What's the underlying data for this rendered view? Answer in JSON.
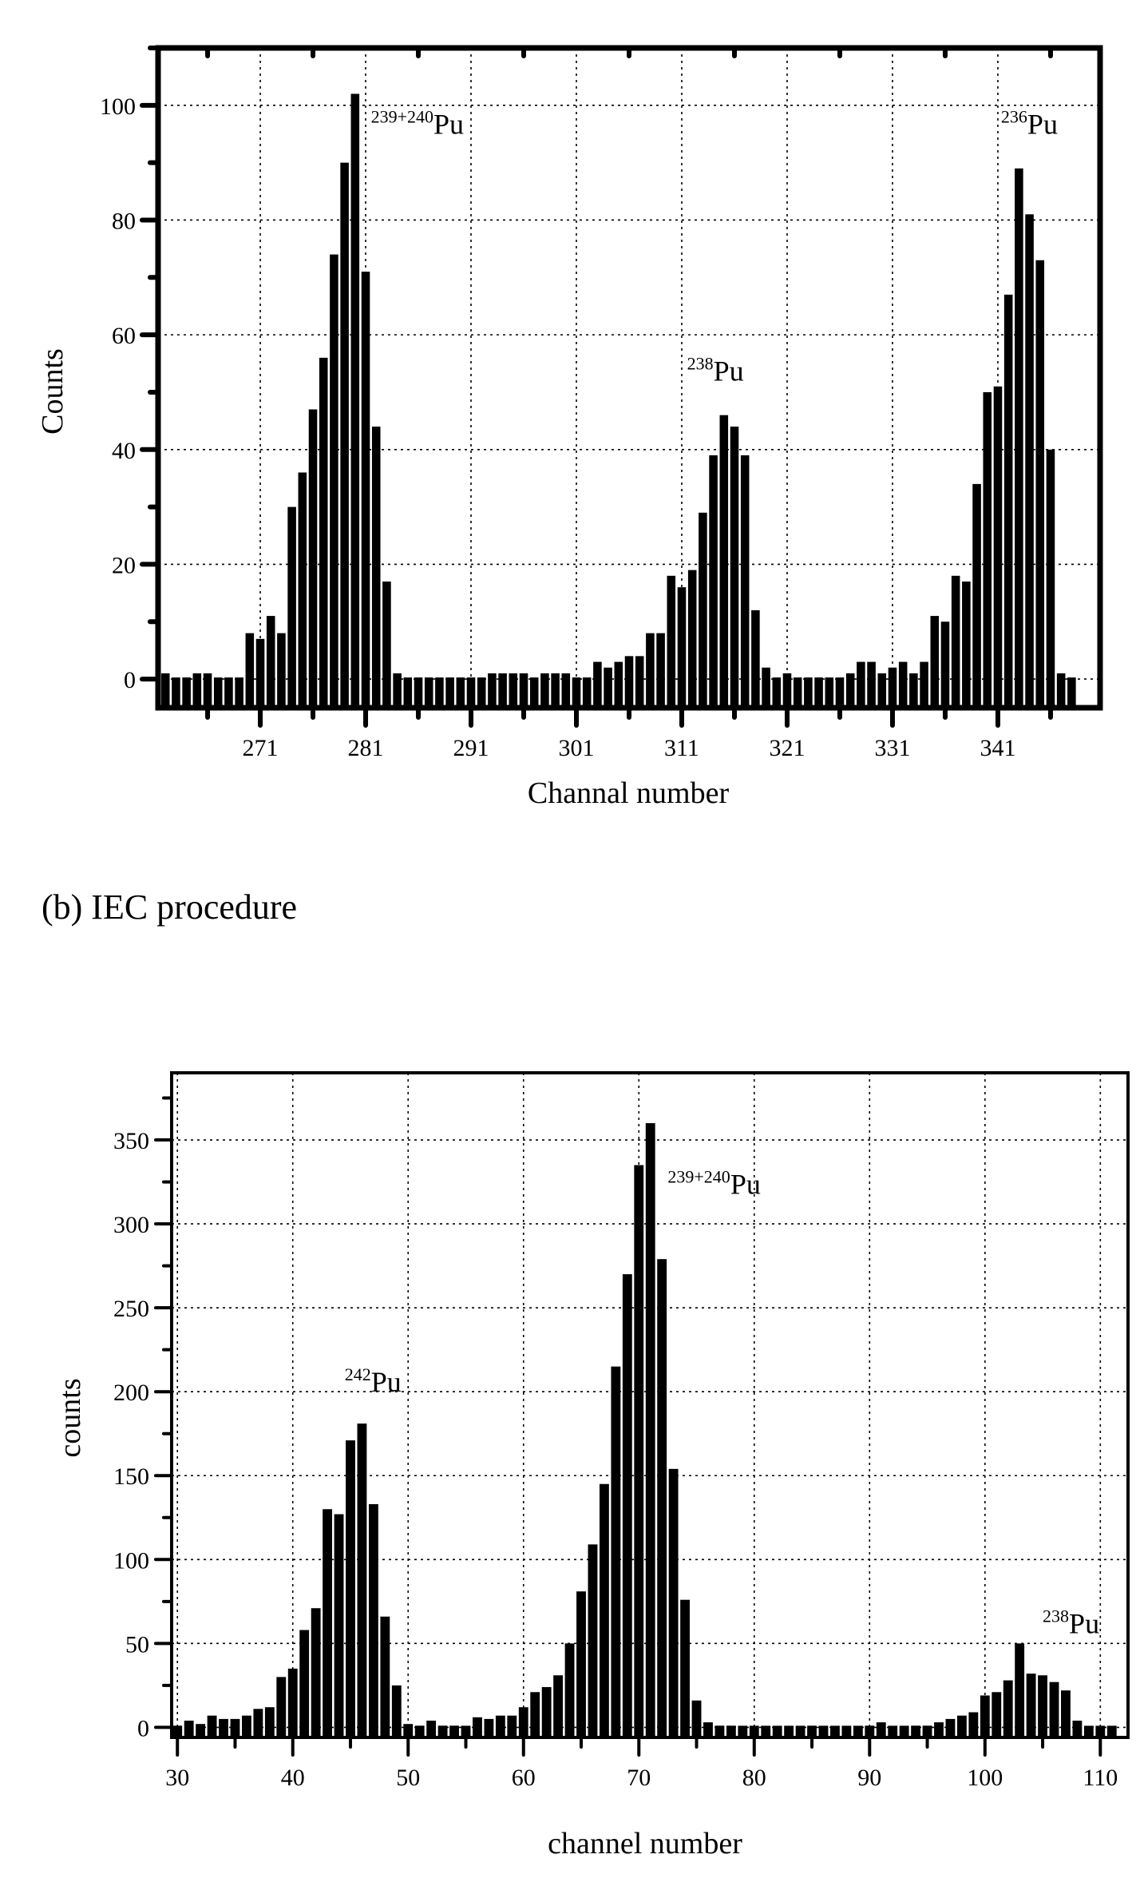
{
  "caption_b": "(b) IEC procedure",
  "chart_data": [
    {
      "type": "bar",
      "panel": "a",
      "title": "",
      "xlabel": "Channal number",
      "ylabel": "Counts",
      "xlim": [
        261.3,
        350.7
      ],
      "ylim": [
        -5,
        110
      ],
      "xticks": [
        271,
        281,
        291,
        301,
        311,
        321,
        331,
        341
      ],
      "yticks": [
        0,
        20,
        40,
        60,
        80,
        100
      ],
      "grid": true,
      "annotations": [
        {
          "sup": "239+240",
          "text": "Pu",
          "x": 281.5,
          "y": 95
        },
        {
          "sup": "238",
          "text": "Pu",
          "x": 311.5,
          "y": 52
        },
        {
          "sup": "236",
          "text": "Pu",
          "x": 341.3,
          "y": 95
        }
      ],
      "x": [
        262,
        263,
        264,
        265,
        266,
        267,
        268,
        269,
        270,
        271,
        272,
        273,
        274,
        275,
        276,
        277,
        278,
        279,
        280,
        281,
        282,
        283,
        284,
        285,
        286,
        287,
        288,
        289,
        290,
        291,
        292,
        293,
        294,
        295,
        296,
        297,
        298,
        299,
        300,
        301,
        302,
        303,
        304,
        305,
        306,
        307,
        308,
        309,
        310,
        311,
        312,
        313,
        314,
        315,
        316,
        317,
        318,
        319,
        320,
        321,
        322,
        323,
        324,
        325,
        326,
        327,
        328,
        329,
        330,
        331,
        332,
        333,
        334,
        335,
        336,
        337,
        338,
        339,
        340,
        341,
        342,
        343,
        344,
        345,
        346,
        347,
        348
      ],
      "values": [
        1,
        0,
        0,
        1,
        1,
        0,
        0,
        0,
        8,
        7,
        11,
        8,
        30,
        36,
        47,
        56,
        74,
        90,
        102,
        71,
        44,
        17,
        1,
        0,
        0,
        0,
        0,
        0,
        0,
        0,
        0,
        1,
        1,
        1,
        1,
        0,
        1,
        1,
        1,
        0,
        0,
        3,
        2,
        3,
        4,
        4,
        8,
        8,
        18,
        16,
        19,
        29,
        39,
        46,
        44,
        39,
        12,
        2,
        0,
        1,
        0,
        0,
        0,
        0,
        0,
        1,
        3,
        3,
        1,
        2,
        3,
        1,
        3,
        11,
        10,
        18,
        17,
        34,
        50,
        51,
        67,
        89,
        81,
        73,
        40,
        1,
        0
      ]
    },
    {
      "type": "bar",
      "panel": "b",
      "title": "",
      "xlabel": "channel number",
      "ylabel": "counts",
      "xlim": [
        29.5,
        112.4
      ],
      "ylim": [
        -6,
        390
      ],
      "xticks": [
        30,
        40,
        50,
        60,
        70,
        80,
        90,
        100,
        110
      ],
      "yticks": [
        0,
        50,
        100,
        150,
        200,
        250,
        300,
        350
      ],
      "grid": true,
      "annotations": [
        {
          "sup": "242",
          "text": "Pu",
          "x": 44.5,
          "y": 200
        },
        {
          "sup": "239+240",
          "text": "Pu",
          "x": 72.5,
          "y": 318
        },
        {
          "sup": "238",
          "text": "Pu",
          "x": 105,
          "y": 56
        }
      ],
      "x": [
        30,
        31,
        32,
        33,
        34,
        35,
        36,
        37,
        38,
        39,
        40,
        41,
        42,
        43,
        44,
        45,
        46,
        47,
        48,
        49,
        50,
        51,
        52,
        53,
        54,
        55,
        56,
        57,
        58,
        59,
        60,
        61,
        62,
        63,
        64,
        65,
        66,
        67,
        68,
        69,
        70,
        71,
        72,
        73,
        74,
        75,
        76,
        77,
        78,
        79,
        80,
        81,
        82,
        83,
        84,
        85,
        86,
        87,
        88,
        89,
        90,
        91,
        92,
        93,
        94,
        95,
        96,
        97,
        98,
        99,
        100,
        101,
        102,
        103,
        104,
        105,
        106,
        107,
        108,
        109,
        110,
        111
      ],
      "values": [
        1,
        4,
        2,
        7,
        5,
        5,
        7,
        11,
        12,
        30,
        35,
        58,
        71,
        130,
        127,
        171,
        181,
        133,
        66,
        25,
        2,
        1,
        4,
        1,
        1,
        0,
        6,
        5,
        7,
        7,
        12,
        21,
        24,
        31,
        50,
        81,
        109,
        145,
        215,
        270,
        335,
        360,
        279,
        154,
        76,
        16,
        3,
        1,
        1,
        0,
        0,
        0,
        0,
        0,
        0,
        1,
        0,
        0,
        0,
        0,
        1,
        3,
        0,
        0,
        1,
        1,
        3,
        5,
        7,
        9,
        19,
        21,
        28,
        50,
        32,
        31,
        27,
        22,
        4,
        0,
        0,
        0
      ]
    }
  ]
}
